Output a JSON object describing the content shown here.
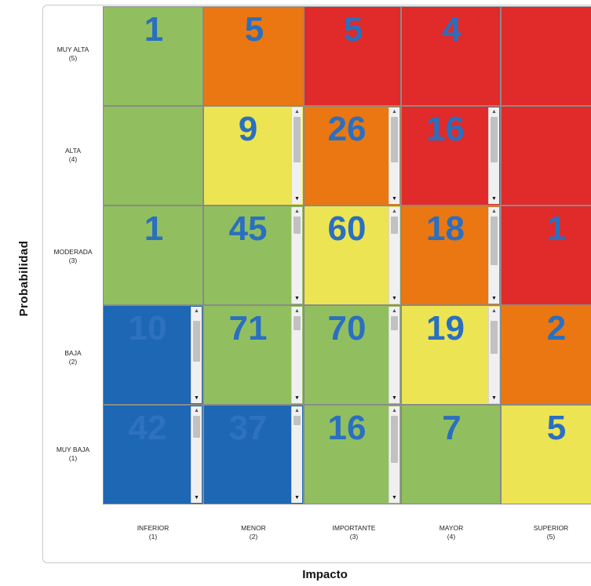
{
  "chart_data": {
    "type": "heatmap",
    "xlabel": "Impacto",
    "ylabel": "Probabilidad",
    "columns": [
      {
        "name": "INFERIOR",
        "level": "(1)"
      },
      {
        "name": "MENOR",
        "level": "(2)"
      },
      {
        "name": "IMPORTANTE",
        "level": "(3)"
      },
      {
        "name": "MAYOR",
        "level": "(4)"
      },
      {
        "name": "SUPERIOR",
        "level": "(5)"
      }
    ],
    "rows": [
      {
        "name": "MUY ALTA",
        "level": "(5)"
      },
      {
        "name": "ALTA",
        "level": "(4)"
      },
      {
        "name": "MODERADA",
        "level": "(3)"
      },
      {
        "name": "BAJA",
        "level": "(2)"
      },
      {
        "name": "MUY BAJA",
        "level": "(1)"
      }
    ],
    "values": [
      [
        "1",
        "5",
        "5",
        "4",
        ""
      ],
      [
        "",
        "9",
        "26",
        "16",
        ""
      ],
      [
        "1",
        "45",
        "60",
        "18",
        "1"
      ],
      [
        "10",
        "71",
        "70",
        "19",
        "2"
      ],
      [
        "42",
        "37",
        "16",
        "7",
        "5"
      ]
    ],
    "cell_colors": [
      [
        "#91bf5f",
        "#ea7711",
        "#e12a2a",
        "#e12a2a",
        "#e12a2a"
      ],
      [
        "#91bf5f",
        "#ece452",
        "#ea7711",
        "#e12a2a",
        "#e12a2a"
      ],
      [
        "#91bf5f",
        "#91bf5f",
        "#ece452",
        "#ea7711",
        "#e12a2a"
      ],
      [
        "#1e67b4",
        "#91bf5f",
        "#91bf5f",
        "#ece452",
        "#ea7711"
      ],
      [
        "#1e67b4",
        "#1e67b4",
        "#91bf5f",
        "#91bf5f",
        "#ece452"
      ]
    ],
    "scrollbars": [
      [
        false,
        false,
        false,
        false,
        false
      ],
      [
        false,
        true,
        true,
        true,
        false
      ],
      [
        false,
        true,
        true,
        true,
        false
      ],
      [
        true,
        true,
        true,
        true,
        false
      ],
      [
        true,
        true,
        true,
        false,
        false
      ]
    ],
    "number_color": "#2a6fc0"
  }
}
